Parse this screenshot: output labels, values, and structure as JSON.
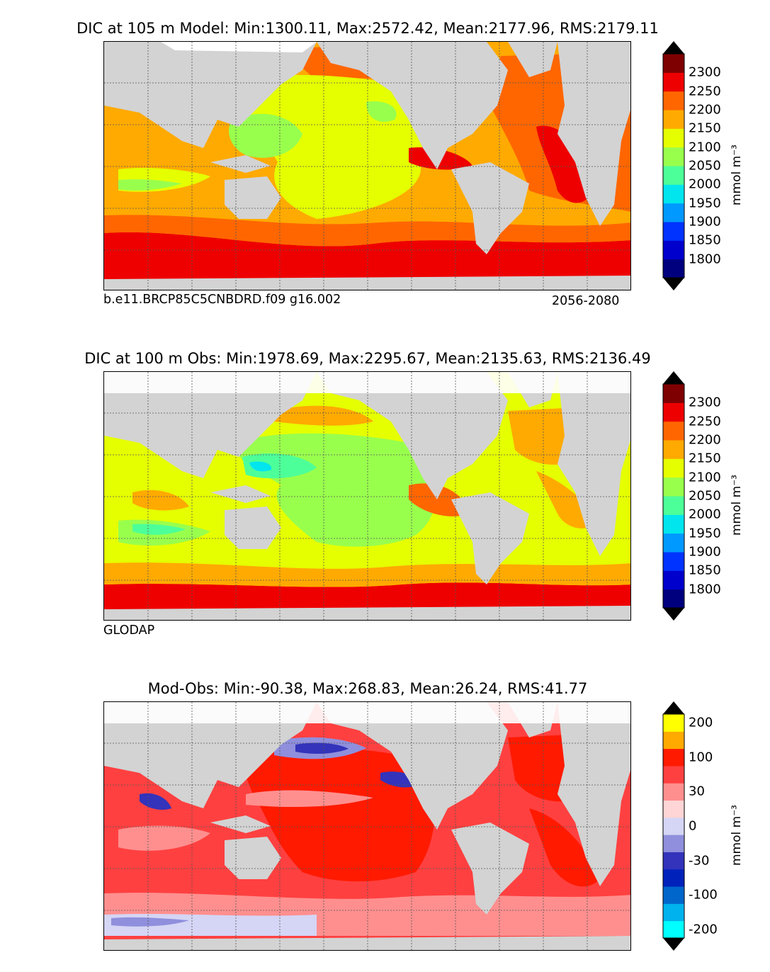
{
  "panels": [
    {
      "title": "DIC at 105 m Model: Min:1300.11, Max:2572.42, Mean:2177.96, RMS:2179.11",
      "subtitle_left": "b.e11.BRCP85C5CNBDRD.f09 g16.002",
      "subtitle_right": "2056-2080",
      "colorbar": {
        "colors": [
          "#00007f",
          "#0000cc",
          "#0033ff",
          "#0099ff",
          "#00e5ee",
          "#4dff99",
          "#99ff4d",
          "#e5ff00",
          "#ffaa00",
          "#ff6600",
          "#ee0000",
          "#7f0000"
        ],
        "ticks": [
          "1800",
          "1850",
          "1900",
          "1950",
          "2000",
          "2050",
          "2100",
          "2150",
          "2200",
          "2250",
          "2300"
        ],
        "unit": "mmol m⁻³"
      }
    },
    {
      "title": "DIC at 100 m Obs: Min:1978.69, Max:2295.67, Mean:2135.63, RMS:2136.49",
      "subtitle_left": "GLODAP",
      "subtitle_right": "",
      "colorbar": {
        "colors": [
          "#00007f",
          "#0000cc",
          "#0033ff",
          "#0099ff",
          "#00e5ee",
          "#4dff99",
          "#99ff4d",
          "#e5ff00",
          "#ffaa00",
          "#ff6600",
          "#ee0000",
          "#7f0000"
        ],
        "ticks": [
          "1800",
          "1850",
          "1900",
          "1950",
          "2000",
          "2050",
          "2100",
          "2150",
          "2200",
          "2250",
          "2300"
        ],
        "unit": "mmol m⁻³"
      }
    },
    {
      "title": "Mod-Obs: Min:-90.38, Max:268.83, Mean:26.24, RMS:41.77",
      "subtitle_left": "",
      "subtitle_right": "",
      "colorbar": {
        "colors": [
          "#00ffff",
          "#00b2ee",
          "#0066cc",
          "#0022bb",
          "#3333bb",
          "#8f8fdd",
          "#d5d5f5",
          "#ffd5d5",
          "#ff8f8f",
          "#ff4040",
          "#ff1a00",
          "#ffaa00",
          "#ffff00"
        ],
        "ticks": [
          "-200",
          "-100",
          "-30",
          "0",
          "30",
          "100",
          "200"
        ],
        "unit": "mmol m⁻³"
      }
    }
  ],
  "map_colors": {
    "land": "#d3d3d3",
    "missing": "#ffffff",
    "coast": "#000000",
    "grid": "#555555"
  }
}
